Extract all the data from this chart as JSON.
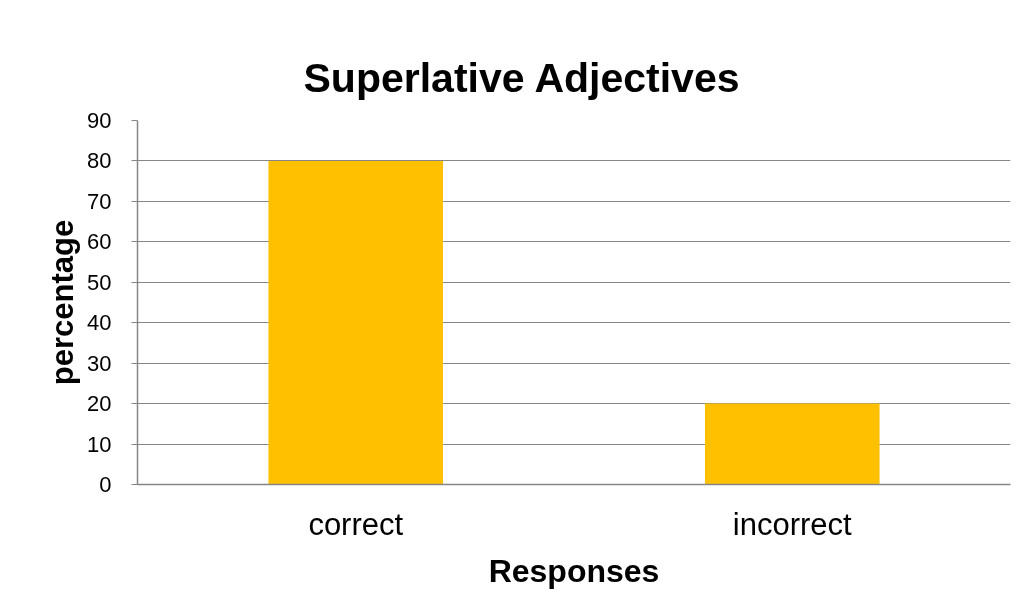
{
  "chart_data": {
    "type": "bar",
    "title": "Superlative Adjectives",
    "xlabel": "Responses",
    "ylabel": "percentage",
    "categories": [
      "correct",
      "incorrect"
    ],
    "series": [
      {
        "color": "#ffc000",
        "values": [
          80,
          20
        ]
      }
    ],
    "ylim": [
      0,
      90
    ],
    "yticks": [
      0,
      10,
      20,
      30,
      40,
      50,
      60,
      70,
      80,
      90
    ],
    "grid": "y"
  }
}
